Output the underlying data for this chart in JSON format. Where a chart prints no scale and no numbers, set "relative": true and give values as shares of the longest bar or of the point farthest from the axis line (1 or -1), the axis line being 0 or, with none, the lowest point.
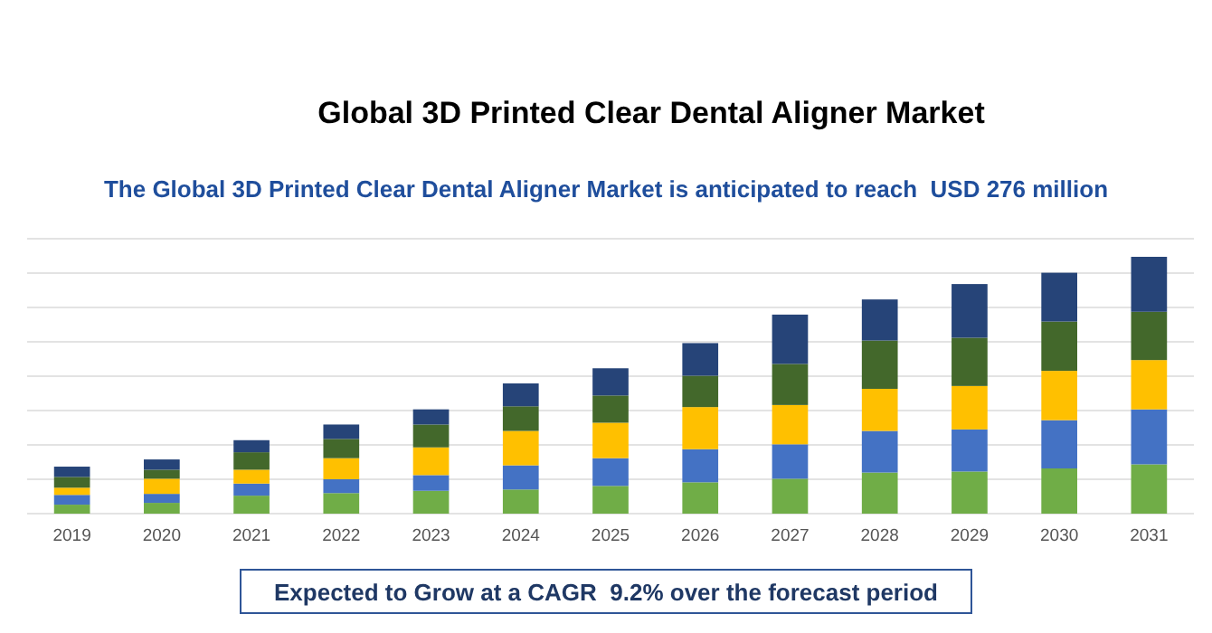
{
  "chart_data": {
    "type": "bar",
    "title": "Global 3D Printed Clear Dental Aligner Market",
    "subtitle": "The Global 3D Printed Clear Dental Aligner Market is anticipated to reach  USD 276 million",
    "annotations": [
      "Expected to Grow at a CAGR  9.2% over the forecast period"
    ],
    "categories": [
      "2019",
      "2020",
      "2021",
      "2022",
      "2023",
      "2024",
      "2025",
      "2026",
      "2027",
      "2028",
      "2029",
      "2030",
      "2031"
    ],
    "stacked": true,
    "relative": true,
    "grid": true,
    "series": [
      {
        "color": "#70ad47",
        "values": [
          0.035,
          0.042,
          0.07,
          0.08,
          0.089,
          0.094,
          0.108,
          0.122,
          0.136,
          0.16,
          0.164,
          0.176,
          0.192
        ]
      },
      {
        "color": "#4472c4",
        "values": [
          0.038,
          0.035,
          0.047,
          0.054,
          0.061,
          0.094,
          0.108,
          0.129,
          0.134,
          0.162,
          0.164,
          0.188,
          0.214
        ]
      },
      {
        "color": "#ffc000",
        "values": [
          0.028,
          0.059,
          0.054,
          0.082,
          0.108,
          0.134,
          0.138,
          0.164,
          0.153,
          0.164,
          0.169,
          0.192,
          0.192
        ]
      },
      {
        "color": "#43682b",
        "values": [
          0.042,
          0.035,
          0.068,
          0.075,
          0.089,
          0.096,
          0.106,
          0.122,
          0.16,
          0.188,
          0.188,
          0.192,
          0.188
        ]
      },
      {
        "color": "#264478",
        "values": [
          0.04,
          0.04,
          0.047,
          0.056,
          0.059,
          0.089,
          0.106,
          0.127,
          0.192,
          0.16,
          0.209,
          0.19,
          0.214
        ]
      }
    ]
  }
}
